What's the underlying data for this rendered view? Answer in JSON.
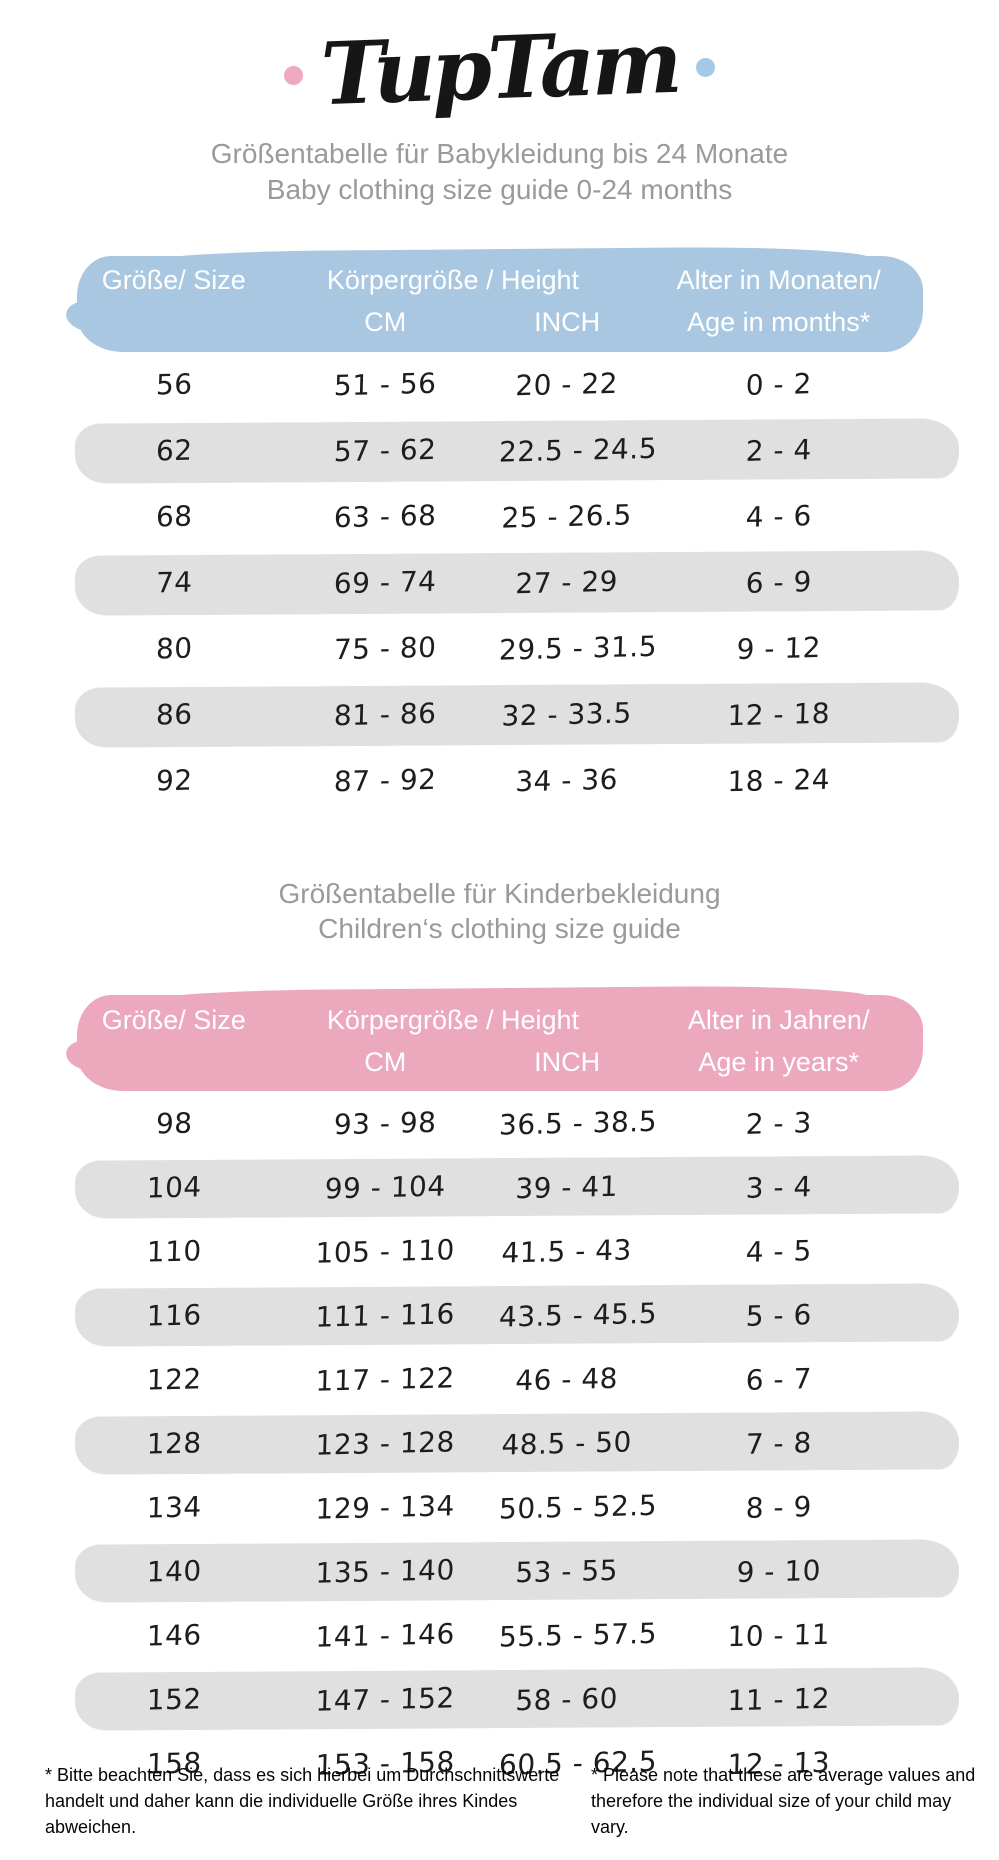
{
  "logo": {
    "text": "TupTam",
    "dot_left_color": "#efa9bf",
    "dot_right_color": "#a3c9e6"
  },
  "chart_data": [
    {
      "type": "table",
      "title_de": "Größentabelle für Babykleidung bis 24 Monate",
      "title_en": "Baby clothing size guide 0-24 months",
      "accent_color": "#a9c7e0",
      "header": {
        "size": "Größe/ Size",
        "height_group": "Körpergröße / Height",
        "cm": "CM",
        "inch": "INCH",
        "age_line1": "Alter in Monaten/",
        "age_line2": "Age in months*"
      },
      "rows": [
        {
          "size": "56",
          "cm": "51 - 56",
          "inch": "20 - 22",
          "age": "0 - 2"
        },
        {
          "size": "62",
          "cm": "57 - 62",
          "inch": "22.5 - 24.5",
          "age": "2 - 4"
        },
        {
          "size": "68",
          "cm": "63 - 68",
          "inch": "25 - 26.5",
          "age": "4 - 6"
        },
        {
          "size": "74",
          "cm": "69 - 74",
          "inch": "27 - 29",
          "age": "6 - 9"
        },
        {
          "size": "80",
          "cm": "75 - 80",
          "inch": "29.5 - 31.5",
          "age": "9 - 12"
        },
        {
          "size": "86",
          "cm": "81 - 86",
          "inch": "32 - 33.5",
          "age": "12 - 18"
        },
        {
          "size": "92",
          "cm": "87 - 92",
          "inch": "34 - 36",
          "age": "18 - 24"
        }
      ]
    },
    {
      "type": "table",
      "title_de": "Größentabelle für Kinderbekleidung",
      "title_en": "Children‘s clothing size guide",
      "accent_color": "#eca9be",
      "header": {
        "size": "Größe/ Size",
        "height_group": "Körpergröße / Height",
        "cm": "CM",
        "inch": "INCH",
        "age_line1": "Alter in Jahren/",
        "age_line2": "Age in years*"
      },
      "rows": [
        {
          "size": "98",
          "cm": "93 - 98",
          "inch": "36.5 - 38.5",
          "age": "2 - 3"
        },
        {
          "size": "104",
          "cm": "99 - 104",
          "inch": "39 - 41",
          "age": "3 - 4"
        },
        {
          "size": "110",
          "cm": "105 - 110",
          "inch": "41.5 - 43",
          "age": "4 - 5"
        },
        {
          "size": "116",
          "cm": "111 - 116",
          "inch": "43.5 - 45.5",
          "age": "5 - 6"
        },
        {
          "size": "122",
          "cm": "117 - 122",
          "inch": "46 - 48",
          "age": "6 - 7"
        },
        {
          "size": "128",
          "cm": "123 - 128",
          "inch": "48.5 - 50",
          "age": "7 - 8"
        },
        {
          "size": "134",
          "cm": "129 - 134",
          "inch": "50.5 - 52.5",
          "age": "8 - 9"
        },
        {
          "size": "140",
          "cm": "135 - 140",
          "inch": "53 - 55",
          "age": "9 - 10"
        },
        {
          "size": "146",
          "cm": "141 - 146",
          "inch": "55.5 - 57.5",
          "age": "10 - 11"
        },
        {
          "size": "152",
          "cm": "147 - 152",
          "inch": "58 - 60",
          "age": "11 - 12"
        },
        {
          "size": "158",
          "cm": "153 - 158",
          "inch": "60.5 - 62.5",
          "age": "12 - 13"
        }
      ]
    }
  ],
  "footnotes": {
    "de": "* Bitte beachten Sie, dass es sich hierbei um Durchschnittswerte handelt und daher kann die individuelle Größe ihres Kindes abweichen.",
    "en": "* Please note that these are average values and therefore the individual size of your child may vary."
  },
  "colors": {
    "baby_header": "#a9c7e0",
    "kids_header": "#eca9be",
    "stripe": "#e0e0e0",
    "heading_text": "#9a9a9a",
    "header_text": "#ffffff",
    "body_text": "#1d1d1d"
  }
}
